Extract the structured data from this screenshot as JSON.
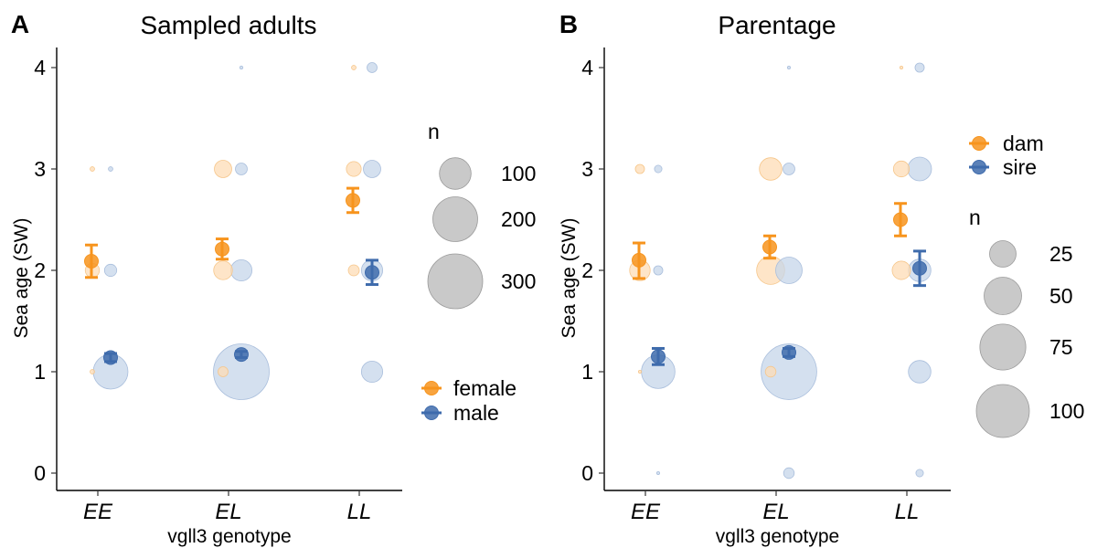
{
  "colors": {
    "orange": "#F7941D",
    "blue": "#3E6BAC",
    "bubble_orange": "#FDDCB5",
    "bubble_blue": "#C5D5EA",
    "legend_grey": "#C9C9C9"
  },
  "chart_data": [
    {
      "type": "scatter",
      "panel_label": "A",
      "title": "Sampled adults",
      "xlabel": "vgll3 genotype",
      "ylabel": "Sea age (SW)",
      "categories": [
        "EE",
        "EL",
        "LL"
      ],
      "yticks": [
        "0",
        "1",
        "2",
        "3",
        "4"
      ],
      "ylim": [
        -0.1,
        4.2
      ],
      "size_legend": {
        "title": "n",
        "entries": [
          {
            "label": "100",
            "n": 100
          },
          {
            "label": "200",
            "n": 200
          },
          {
            "label": "300",
            "n": 300
          }
        ],
        "n_max": 300
      },
      "color_legend": [
        {
          "label": "female",
          "color": "orange"
        },
        {
          "label": "male",
          "color": "blue"
        }
      ],
      "bubbles": [
        {
          "cat": "EE",
          "group": "female",
          "y": 1,
          "n": 2
        },
        {
          "cat": "EE",
          "group": "female",
          "y": 2,
          "n": 20
        },
        {
          "cat": "EE",
          "group": "female",
          "y": 3,
          "n": 2
        },
        {
          "cat": "EE",
          "group": "male",
          "y": 1,
          "n": 120
        },
        {
          "cat": "EE",
          "group": "male",
          "y": 2,
          "n": 15
        },
        {
          "cat": "EE",
          "group": "male",
          "y": 3,
          "n": 2
        },
        {
          "cat": "EL",
          "group": "female",
          "y": 1,
          "n": 10
        },
        {
          "cat": "EL",
          "group": "female",
          "y": 2,
          "n": 35
        },
        {
          "cat": "EL",
          "group": "female",
          "y": 3,
          "n": 30
        },
        {
          "cat": "EL",
          "group": "male",
          "y": 1,
          "n": 310
        },
        {
          "cat": "EL",
          "group": "male",
          "y": 2,
          "n": 45
        },
        {
          "cat": "EL",
          "group": "male",
          "y": 3,
          "n": 14
        },
        {
          "cat": "EL",
          "group": "male",
          "y": 4,
          "n": 1
        },
        {
          "cat": "LL",
          "group": "female",
          "y": 2,
          "n": 12
        },
        {
          "cat": "LL",
          "group": "female",
          "y": 3,
          "n": 22
        },
        {
          "cat": "LL",
          "group": "female",
          "y": 4,
          "n": 2
        },
        {
          "cat": "LL",
          "group": "male",
          "y": 1,
          "n": 45
        },
        {
          "cat": "LL",
          "group": "male",
          "y": 2,
          "n": 45
        },
        {
          "cat": "LL",
          "group": "male",
          "y": 3,
          "n": 30
        },
        {
          "cat": "LL",
          "group": "male",
          "y": 4,
          "n": 10
        }
      ],
      "means": [
        {
          "cat": "EE",
          "group": "female",
          "mean": 2.09,
          "lo": 1.93,
          "hi": 2.25
        },
        {
          "cat": "EE",
          "group": "male",
          "mean": 1.14,
          "lo": 1.1,
          "hi": 1.18
        },
        {
          "cat": "EL",
          "group": "female",
          "mean": 2.21,
          "lo": 2.11,
          "hi": 2.31
        },
        {
          "cat": "EL",
          "group": "male",
          "mean": 1.17,
          "lo": 1.14,
          "hi": 1.2
        },
        {
          "cat": "LL",
          "group": "female",
          "mean": 2.69,
          "lo": 2.57,
          "hi": 2.81
        },
        {
          "cat": "LL",
          "group": "male",
          "mean": 1.98,
          "lo": 1.86,
          "hi": 2.1
        }
      ]
    },
    {
      "type": "scatter",
      "panel_label": "B",
      "title": "Parentage",
      "xlabel": "vgll3 genotype",
      "ylabel": "Sea age (SW)",
      "categories": [
        "EE",
        "EL",
        "LL"
      ],
      "yticks": [
        "0",
        "1",
        "2",
        "3",
        "4"
      ],
      "ylim": [
        -0.1,
        4.2
      ],
      "size_legend": {
        "title": "n",
        "entries": [
          {
            "label": "25",
            "n": 25
          },
          {
            "label": "50",
            "n": 50
          },
          {
            "label": "75",
            "n": 75
          },
          {
            "label": "100",
            "n": 100
          }
        ],
        "n_max": 100
      },
      "color_legend": [
        {
          "label": "dam",
          "color": "orange"
        },
        {
          "label": "sire",
          "color": "blue"
        }
      ],
      "bubbles": [
        {
          "cat": "EE",
          "group": "dam",
          "y": 1,
          "n": 0.3
        },
        {
          "cat": "EE",
          "group": "dam",
          "y": 2,
          "n": 15
        },
        {
          "cat": "EE",
          "group": "dam",
          "y": 3,
          "n": 3
        },
        {
          "cat": "EE",
          "group": "sire",
          "y": 0,
          "n": 0.3
        },
        {
          "cat": "EE",
          "group": "sire",
          "y": 1,
          "n": 40
        },
        {
          "cat": "EE",
          "group": "sire",
          "y": 2,
          "n": 3
        },
        {
          "cat": "EE",
          "group": "sire",
          "y": 3,
          "n": 2
        },
        {
          "cat": "EL",
          "group": "dam",
          "y": 1,
          "n": 4
        },
        {
          "cat": "EL",
          "group": "dam",
          "y": 2,
          "n": 28
        },
        {
          "cat": "EL",
          "group": "dam",
          "y": 3,
          "n": 18
        },
        {
          "cat": "EL",
          "group": "sire",
          "y": 0,
          "n": 4
        },
        {
          "cat": "EL",
          "group": "sire",
          "y": 1,
          "n": 110
        },
        {
          "cat": "EL",
          "group": "sire",
          "y": 2,
          "n": 25
        },
        {
          "cat": "EL",
          "group": "sire",
          "y": 3,
          "n": 5
        },
        {
          "cat": "EL",
          "group": "sire",
          "y": 4,
          "n": 0.3
        },
        {
          "cat": "LL",
          "group": "dam",
          "y": 2,
          "n": 12
        },
        {
          "cat": "LL",
          "group": "dam",
          "y": 3,
          "n": 9
        },
        {
          "cat": "LL",
          "group": "dam",
          "y": 4,
          "n": 0.3
        },
        {
          "cat": "LL",
          "group": "sire",
          "y": 0,
          "n": 2
        },
        {
          "cat": "LL",
          "group": "sire",
          "y": 1,
          "n": 18
        },
        {
          "cat": "LL",
          "group": "sire",
          "y": 2,
          "n": 18
        },
        {
          "cat": "LL",
          "group": "sire",
          "y": 3,
          "n": 20
        },
        {
          "cat": "LL",
          "group": "sire",
          "y": 4,
          "n": 3
        }
      ],
      "means": [
        {
          "cat": "EE",
          "group": "dam",
          "mean": 2.1,
          "lo": 1.92,
          "hi": 2.27
        },
        {
          "cat": "EE",
          "group": "sire",
          "mean": 1.15,
          "lo": 1.07,
          "hi": 1.23
        },
        {
          "cat": "EL",
          "group": "dam",
          "mean": 2.23,
          "lo": 2.12,
          "hi": 2.34
        },
        {
          "cat": "EL",
          "group": "sire",
          "mean": 1.19,
          "lo": 1.15,
          "hi": 1.23
        },
        {
          "cat": "LL",
          "group": "dam",
          "mean": 2.5,
          "lo": 2.34,
          "hi": 2.66
        },
        {
          "cat": "LL",
          "group": "sire",
          "mean": 2.02,
          "lo": 1.85,
          "hi": 2.19
        }
      ]
    }
  ]
}
